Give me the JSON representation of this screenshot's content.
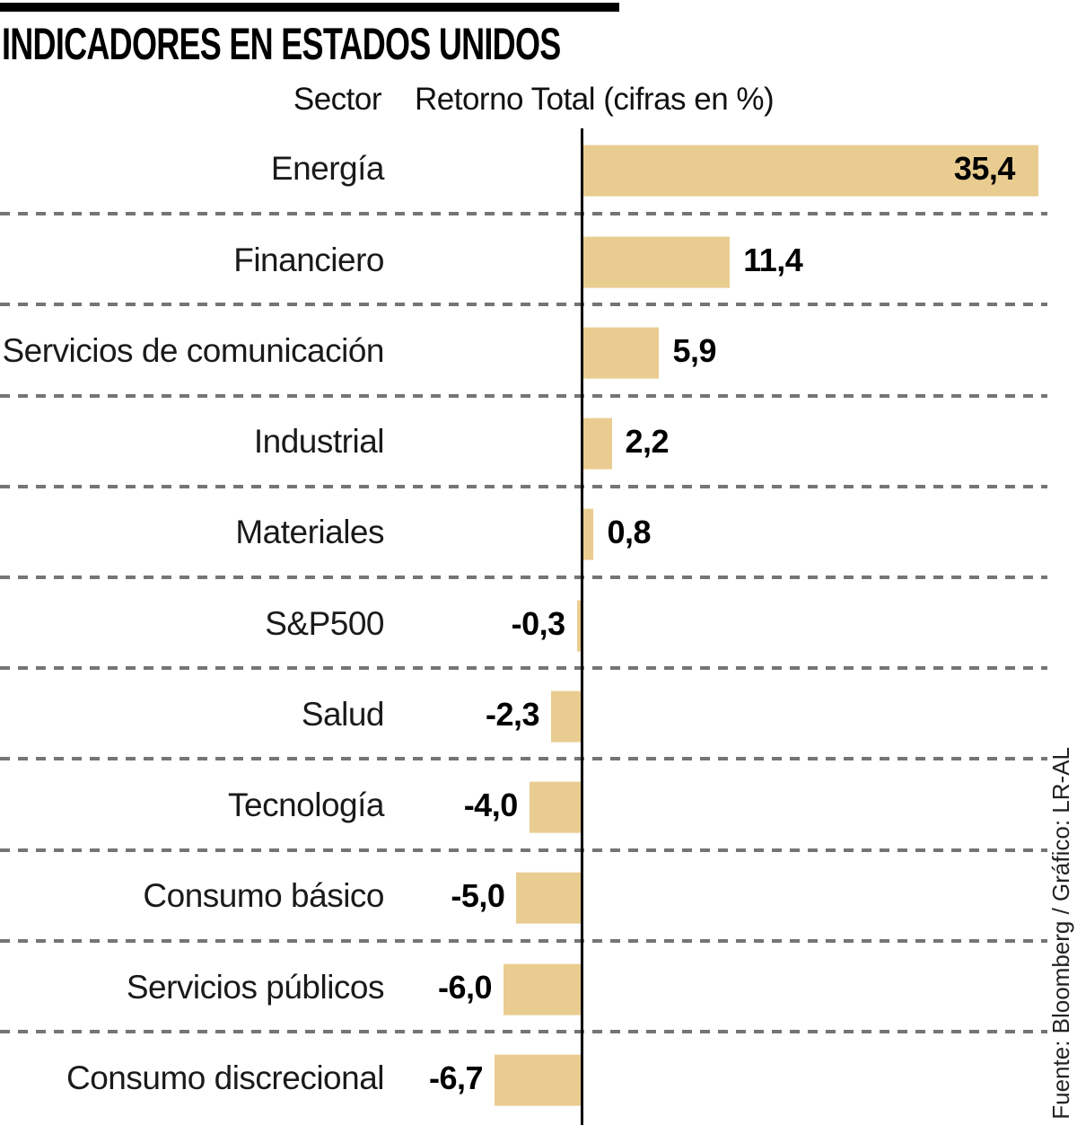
{
  "title": "INDICADORES EN ESTADOS UNIDOS",
  "header": {
    "sector": "Sector",
    "retorno": "Retorno Total (cifras en %)"
  },
  "source": "Fuente: Bloomberg / Gráfico: LR-AL",
  "chart_data": {
    "type": "bar",
    "orientation": "horizontal",
    "title": "INDICADORES EN ESTADOS UNIDOS",
    "xlabel": "Retorno Total (cifras en %)",
    "ylabel": "Sector",
    "unit": "%",
    "categories": [
      "Energía",
      "Financiero",
      "Servicios de comunicación",
      "Industrial",
      "Materiales",
      "S&P500",
      "Salud",
      "Tecnología",
      "Consumo básico",
      "Servicios públicos",
      "Consumo discrecional"
    ],
    "values": [
      35.4,
      11.4,
      5.9,
      2.2,
      0.8,
      -0.3,
      -2.3,
      -4.0,
      -5.0,
      -6.0,
      -6.7
    ],
    "value_labels": [
      "35,4",
      "11,4",
      "5,9",
      "2,2",
      "0,8",
      "-0,3",
      "-2,3",
      "-4,0",
      "-5,0",
      "-6,0",
      "-6,7"
    ],
    "xlim": [
      -15,
      36
    ],
    "grid": "dashed-row-separators",
    "legend": "none",
    "bar_color": "#e9cc90",
    "axis_color": "#000000",
    "separator_color": "#757575",
    "value_label_color": "#000000"
  }
}
